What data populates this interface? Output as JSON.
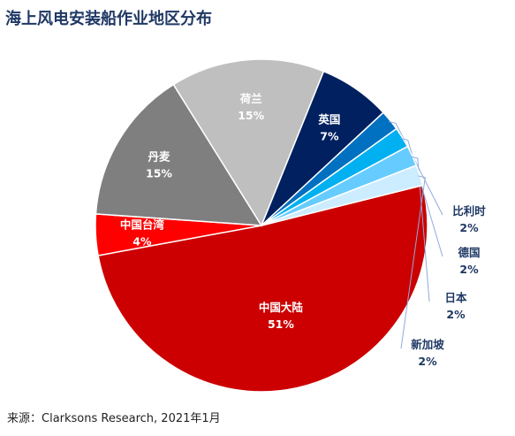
{
  "title": "海上风电安装船作业地区分布",
  "source": "来源：Clarksons Research, 2021年1月",
  "chart_data": {
    "type": "pie",
    "start_angle_deg": -14,
    "slices": [
      {
        "label": "中国大陆",
        "value": 51,
        "value_label": "51%",
        "color": "#cc0000",
        "label_color": "#ffffff",
        "label_position": "inside"
      },
      {
        "label": "中国台湾",
        "value": 4,
        "value_label": "4%",
        "color": "#ff0000",
        "label_color": "#ffffff",
        "label_position": "inside"
      },
      {
        "label": "丹麦",
        "value": 15,
        "value_label": "15%",
        "color": "#7f7f7f",
        "label_color": "#ffffff",
        "label_position": "inside"
      },
      {
        "label": "荷兰",
        "value": 15,
        "value_label": "15%",
        "color": "#bfbfbf",
        "label_color": "#ffffff",
        "label_position": "inside"
      },
      {
        "label": "英国",
        "value": 7,
        "value_label": "7%",
        "color": "#002060",
        "label_color": "#ffffff",
        "label_position": "inside"
      },
      {
        "label": "比利时",
        "value": 2,
        "value_label": "2%",
        "color": "#0070c0",
        "label_color": "#1f3864",
        "label_position": "outside"
      },
      {
        "label": "德国",
        "value": 2,
        "value_label": "2%",
        "color": "#00b0f0",
        "label_color": "#1f3864",
        "label_position": "outside"
      },
      {
        "label": "日本",
        "value": 2,
        "value_label": "2%",
        "color": "#66ccff",
        "label_color": "#1f3864",
        "label_position": "outside"
      },
      {
        "label": "新加坡",
        "value": 2,
        "value_label": "2%",
        "color": "#ccecff",
        "label_color": "#1f3864",
        "label_position": "outside"
      }
    ]
  }
}
